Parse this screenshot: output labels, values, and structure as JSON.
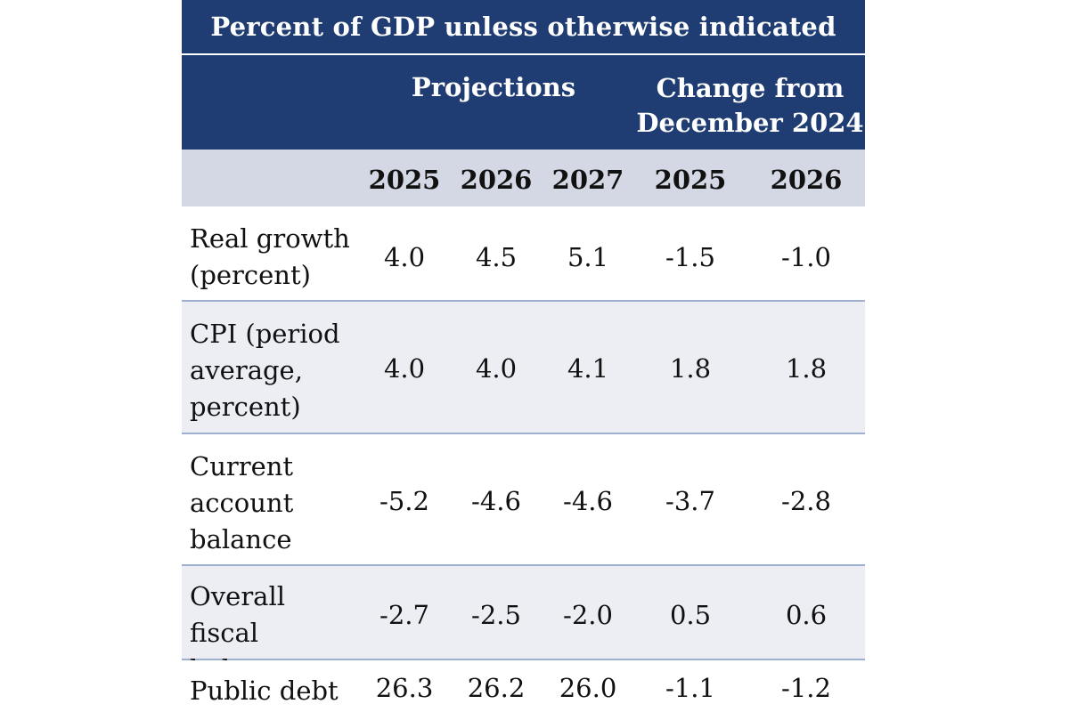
{
  "chart_data": {
    "type": "table",
    "title": "Percent of GDP unless otherwise indicated",
    "column_groups": [
      {
        "label": "Projections",
        "years": [
          "2025",
          "2026",
          "2027"
        ]
      },
      {
        "label": "Change from December 2024",
        "years": [
          "2025",
          "2026"
        ]
      }
    ],
    "header_group_projections": "Projections",
    "header_group_change_line1": "Change from",
    "header_group_change_line2": "December 2024",
    "years": [
      "2025",
      "2026",
      "2027",
      "2025",
      "2026"
    ],
    "rows": [
      {
        "label_lines": [
          "Real growth",
          "(percent)"
        ],
        "values": [
          "4.0",
          "4.5",
          "5.1",
          "-1.5",
          "-1.0"
        ]
      },
      {
        "label_lines": [
          "CPI (period",
          "average,",
          "percent)"
        ],
        "values": [
          "4.0",
          "4.0",
          "4.1",
          "1.8",
          "1.8"
        ]
      },
      {
        "label_lines": [
          "Current",
          "account",
          "balance"
        ],
        "values": [
          "-5.2",
          "-4.6",
          "-4.6",
          "-3.7",
          "-2.8"
        ]
      },
      {
        "label_lines": [
          "Overall fiscal",
          "balance"
        ],
        "values": [
          "-2.7",
          "-2.5",
          "-2.0",
          "0.5",
          "0.6"
        ]
      },
      {
        "label_lines": [
          "Public debt"
        ],
        "values": [
          "26.3",
          "26.2",
          "26.0",
          "-1.1",
          "-1.2"
        ]
      }
    ]
  },
  "colors": {
    "header_bg": "#1f3d73",
    "year_row_bg": "#d4d8e4",
    "alt_row_bg": "#eceef4",
    "divider": "#9fb0cf"
  }
}
